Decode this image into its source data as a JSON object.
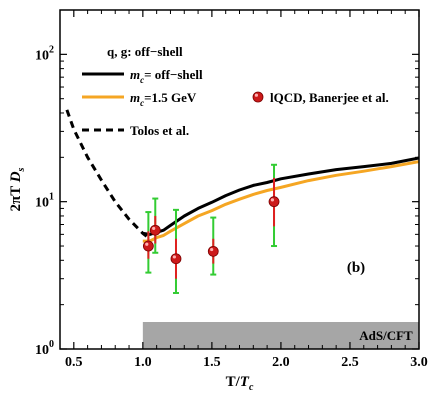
{
  "chart_data": {
    "type": "line",
    "panel_label": "(b)",
    "header_text": "q, g: off−shell",
    "xlabel": {
      "base": "T/",
      "var": "T",
      "sub": "c"
    },
    "ylabel": {
      "base": "2πT ",
      "var": "D",
      "sub": "s"
    },
    "xlim": [
      0.4,
      3.0
    ],
    "ylim": [
      1,
      200
    ],
    "yscale": "log",
    "xticks": [
      0.5,
      1.0,
      1.5,
      2.0,
      2.5,
      3.0
    ],
    "xtick_labels": [
      "0.5",
      "1.0",
      "1.5",
      "2.0",
      "2.5",
      "3.0"
    ],
    "yticks": [
      1,
      10,
      100
    ],
    "ytick_labels": [
      {
        "base": "10",
        "exp": "0"
      },
      {
        "base": "10",
        "exp": "1"
      },
      {
        "base": "10",
        "exp": "2"
      }
    ],
    "legend_placement": "top-left",
    "series": [
      {
        "name": {
          "var": "m",
          "sub": "c",
          "rest": "= off−shell"
        },
        "style": "solid",
        "color": "#000000",
        "x": [
          1.0,
          1.05,
          1.1,
          1.15,
          1.2,
          1.3,
          1.4,
          1.5,
          1.6,
          1.7,
          1.8,
          1.9,
          2.0,
          2.2,
          2.4,
          2.6,
          2.8,
          3.0
        ],
        "y": [
          6.1,
          6.0,
          6.2,
          6.4,
          6.9,
          8.0,
          9.0,
          9.9,
          11.0,
          12.0,
          12.9,
          13.5,
          14.3,
          15.4,
          16.5,
          17.3,
          18.2,
          19.8
        ]
      },
      {
        "name": {
          "var": "m",
          "sub": "c",
          "rest": "=1.5 GeV"
        },
        "style": "solid",
        "color": "#f5a623",
        "x": [
          1.0,
          1.05,
          1.1,
          1.15,
          1.2,
          1.3,
          1.4,
          1.5,
          1.6,
          1.7,
          1.8,
          1.9,
          2.0,
          2.2,
          2.4,
          2.6,
          2.8,
          3.0
        ],
        "y": [
          5.4,
          5.4,
          5.7,
          5.9,
          6.3,
          7.1,
          8.0,
          8.7,
          9.6,
          10.4,
          11.2,
          11.9,
          12.5,
          13.9,
          15.1,
          16.1,
          17.3,
          18.7
        ]
      },
      {
        "name": {
          "text": "Tolos et al."
        },
        "style": "dashed",
        "color": "#000000",
        "x": [
          0.45,
          0.5,
          0.6,
          0.7,
          0.8,
          0.9,
          1.0,
          1.05
        ],
        "y": [
          42,
          31,
          20,
          14,
          10,
          7.6,
          6.1,
          5.6
        ]
      }
    ],
    "points": {
      "name": {
        "text": "lQCD,  Banerjee et al."
      },
      "marker_color": "#cc1a1a",
      "bar_color_inner": "#e02020",
      "bar_color_outer": "#33cc33",
      "data": [
        {
          "x": 1.04,
          "y": 5.0,
          "inner": [
            4.1,
            6.3
          ],
          "outer": [
            3.3,
            8.5
          ]
        },
        {
          "x": 1.09,
          "y": 6.4,
          "inner": [
            5.2,
            8.0
          ],
          "outer": [
            4.5,
            10.5
          ]
        },
        {
          "x": 1.24,
          "y": 4.1,
          "inner": [
            3.0,
            5.6
          ],
          "outer": [
            2.4,
            8.8
          ]
        },
        {
          "x": 1.51,
          "y": 4.6,
          "inner": [
            3.8,
            5.6
          ],
          "outer": [
            3.2,
            7.8
          ]
        },
        {
          "x": 1.95,
          "y": 10.0,
          "inner": [
            6.8,
            14.5
          ],
          "outer": [
            5.0,
            17.8
          ]
        }
      ]
    },
    "band": {
      "label": "AdS/CFT",
      "x_start": 1.0,
      "x_end": 3.0,
      "color": "#a6a6a6"
    }
  }
}
